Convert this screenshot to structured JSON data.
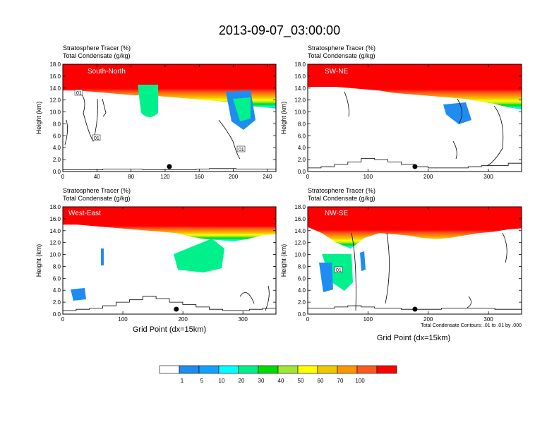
{
  "figure": {
    "title": "2013-09-07_03:00:00",
    "note": "Total Condensate Contours: .01 to .01 by .000"
  },
  "colorbar": {
    "colors": [
      "#ffffff",
      "#1e8cf0",
      "#14a0ff",
      "#00ffff",
      "#00f08c",
      "#00dc00",
      "#a0e632",
      "#ffff00",
      "#f0c800",
      "#fa9600",
      "#fa5a1e",
      "#ff0000"
    ],
    "labels": [
      "1",
      "5",
      "10",
      "20",
      "30",
      "40",
      "50",
      "60",
      "70",
      "100"
    ]
  },
  "chart_data": [
    {
      "type": "heatmap",
      "panel_label": "South-North",
      "title": "Stratosphere Tracer   (%)",
      "subtitle": "Total Condensate   (g/kg)",
      "ylabel": "Height (km)",
      "xlabel": "",
      "xlim": [
        0,
        250
      ],
      "xticks": [
        "0",
        "40",
        "80",
        "120",
        "160",
        "200",
        "240"
      ],
      "ylim": [
        0,
        18
      ],
      "yticks": [
        "0.0",
        "2.0",
        "4.0",
        "6.0",
        "8.0",
        "10.0",
        "12.0",
        "14.0",
        "16.0",
        "18.0"
      ],
      "contour_labels": [
        "01",
        "01",
        "01"
      ],
      "tropopause_km": [
        13.6,
        13.6,
        13.4,
        13.2,
        13.0,
        12.8,
        12.8,
        12.6,
        12.4,
        12.2,
        12.0,
        11.8,
        11.5,
        11.0,
        10.8,
        10.6
      ],
      "terrain_km": [
        0.3,
        0.3,
        0.3,
        0.4,
        0.4,
        0.4,
        0.3,
        0.3,
        0.3,
        0.3,
        0.4,
        0.5,
        0.5,
        0.4,
        0.4,
        0.4
      ],
      "marker_x": 125
    },
    {
      "type": "heatmap",
      "panel_label": "SW-NE",
      "title": "Stratosphere Tracer   (%)",
      "subtitle": "Total Condensate   (g/kg)",
      "ylabel": "Height (km)",
      "xlabel": "",
      "xlim": [
        0,
        355
      ],
      "xticks": [
        "0",
        "100",
        "200",
        "300"
      ],
      "ylim": [
        0,
        18
      ],
      "yticks": [
        "0.0",
        "2.0",
        "4.0",
        "6.0",
        "8.0",
        "10.0",
        "12.0",
        "14.0",
        "16.0",
        "18.0"
      ],
      "contour_labels": [],
      "tropopause_km": [
        14.2,
        14.2,
        14.2,
        14.0,
        13.8,
        13.6,
        13.2,
        13.0,
        12.8,
        12.6,
        12.4,
        12.2,
        11.8,
        11.4,
        10.8,
        10.4
      ],
      "terrain_km": [
        0.6,
        0.8,
        1.2,
        1.6,
        2.2,
        2.0,
        1.6,
        1.2,
        0.8,
        0.6,
        0.6,
        0.6,
        0.8,
        1.0,
        1.0,
        1.4
      ],
      "marker_x": 178
    },
    {
      "type": "heatmap",
      "panel_label": "West-East",
      "title": "Stratosphere Tracer   (%)",
      "subtitle": "Total Condensate   (g/kg)",
      "ylabel": "Height (km)",
      "xlabel": "Grid Point (dx=15km)",
      "xlim": [
        0,
        355
      ],
      "xticks": [
        "0",
        "100",
        "200",
        "300"
      ],
      "ylim": [
        0,
        18
      ],
      "yticks": [
        "0.0",
        "2.0",
        "4.0",
        "6.0",
        "8.0",
        "10.0",
        "12.0",
        "14.0",
        "16.0",
        "18.0"
      ],
      "contour_labels": [],
      "tropopause_km": [
        15.0,
        15.0,
        14.8,
        14.6,
        14.4,
        14.2,
        14.0,
        13.8,
        13.6,
        13.0,
        12.6,
        12.4,
        12.2,
        12.6,
        13.2,
        13.4
      ],
      "terrain_km": [
        0.6,
        0.8,
        1.0,
        1.4,
        2.0,
        2.4,
        3.0,
        2.6,
        2.0,
        1.6,
        1.2,
        0.8,
        0.6,
        0.6,
        0.8,
        1.0
      ],
      "marker_x": 189
    },
    {
      "type": "heatmap",
      "panel_label": "NW-SE",
      "title": "Stratosphere Tracer   (%)",
      "subtitle": "Total Condensate   (g/kg)",
      "ylabel": "Height (km)",
      "xlabel": "Grid Point (dx=15km)",
      "xlim": [
        0,
        355
      ],
      "xticks": [
        "0",
        "100",
        "200",
        "300"
      ],
      "ylim": [
        0,
        18
      ],
      "yticks": [
        "0.0",
        "2.0",
        "4.0",
        "6.0",
        "8.0",
        "10.0",
        "12.0",
        "14.0",
        "16.0",
        "18.0"
      ],
      "contour_labels": [
        "01"
      ],
      "tropopause_km": [
        14.6,
        13.6,
        12.0,
        11.0,
        12.8,
        13.6,
        13.4,
        13.2,
        12.8,
        12.6,
        12.8,
        13.2,
        13.6,
        13.8,
        14.2,
        14.4
      ],
      "terrain_km": [
        1.0,
        1.0,
        1.2,
        1.4,
        1.2,
        1.0,
        1.0,
        0.8,
        0.8,
        0.8,
        1.0,
        1.0,
        1.0,
        1.0,
        0.8,
        0.8
      ],
      "marker_x": 178
    }
  ]
}
